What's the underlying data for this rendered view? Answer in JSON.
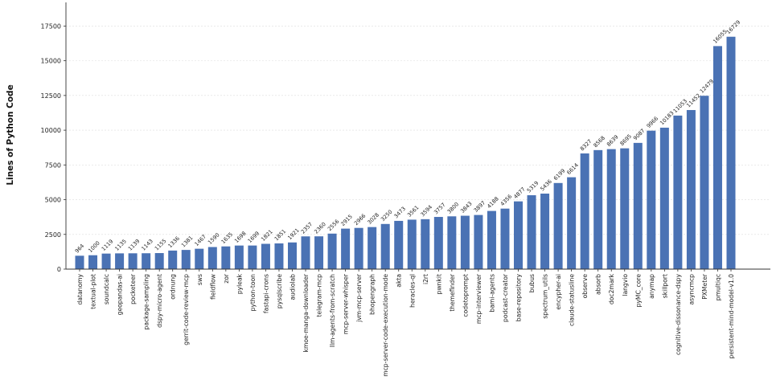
{
  "chart_data": {
    "type": "bar",
    "title": "",
    "xlabel": "",
    "ylabel": "Lines of Python Code",
    "ylim": [
      0,
      19200
    ],
    "yticks": [
      0,
      2500,
      5000,
      7500,
      10000,
      12500,
      15000,
      17500
    ],
    "grid": "horizontal dotted",
    "bar_color": "#4a72b4",
    "categories": [
      "datanomy",
      "textual-plot",
      "soundcalc",
      "geopandas-ai",
      "pocketeer",
      "package-sampling",
      "dspy-micro-agent",
      "ordnung",
      "gerrit-code-review-mcp",
      "sws",
      "fieldflow",
      "zor",
      "pyleak",
      "python-toon",
      "fastapi-crons",
      "pysqlscribe",
      "audiolab",
      "kmoe-manga-downloader",
      "telegram-mcp",
      "llm-agents-from-scratch",
      "mcp-server-whisper",
      "jvm-mcp-server",
      "bhopengraph",
      "mcp-server-code-execution-mode",
      "akta",
      "heracles-ql",
      "i2rt",
      "pwnkit",
      "themefinder",
      "codetoprompt",
      "mcp-interviewer",
      "bami-agents",
      "podcast-creator",
      "base-repository",
      "bubus",
      "spectrum_utils",
      "encypher-ai",
      "claude-statusline",
      "observe",
      "absorb",
      "doc2mark",
      "langvio",
      "pyMC_core",
      "anymap",
      "skillport",
      "cognitive-dissonance-dspy",
      "asyncmcp",
      "PXMeter",
      "pmultiqc",
      "persistent-mind-model-v1.0"
    ],
    "values": [
      964,
      1000,
      1119,
      1135,
      1139,
      1143,
      1155,
      1336,
      1381,
      1467,
      1590,
      1635,
      1698,
      1699,
      1821,
      1851,
      1921,
      2357,
      2360,
      2556,
      2915,
      2966,
      3028,
      3250,
      3473,
      3561,
      3594,
      3757,
      3800,
      3843,
      3897,
      4188,
      4356,
      4877,
      5319,
      5436,
      6199,
      6614,
      8327,
      8568,
      8639,
      8695,
      9087,
      9966,
      10183,
      11053,
      11452,
      12479,
      16055,
      16729
    ]
  }
}
